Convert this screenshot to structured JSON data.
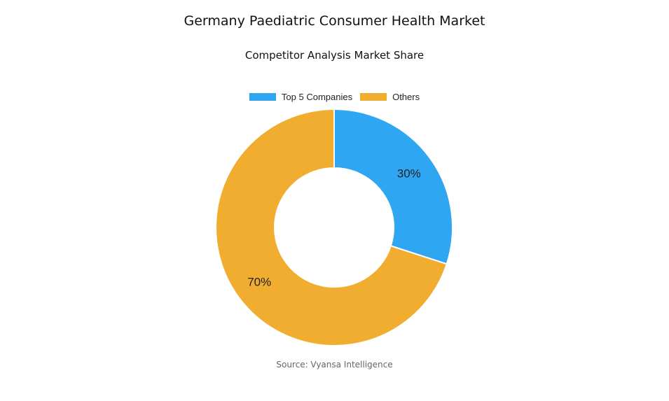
{
  "title": "Germany Paediatric Consumer Health Market",
  "subtitle": "Competitor Analysis Market Share",
  "source": "Source: Vyansa Intelligence",
  "chart_data": {
    "type": "pie",
    "donut": true,
    "title": "Competitor Analysis Market Share",
    "legend_position": "top",
    "categories": [
      "Top 5 Companies",
      "Others"
    ],
    "values": [
      30,
      70
    ],
    "labels": [
      "30%",
      "70%"
    ],
    "colors": [
      "#2EA6F2",
      "#F0AD30"
    ]
  }
}
